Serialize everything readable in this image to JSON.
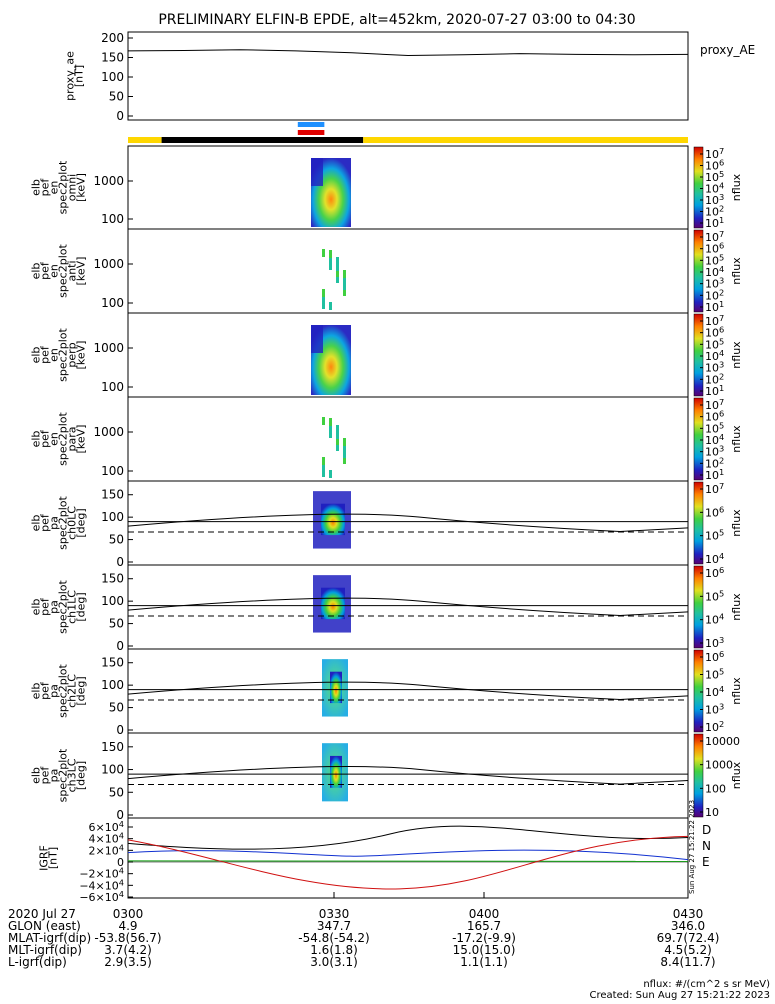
{
  "title": "PRELIMINARY ELFIN-B EPDE, alt=452km, 2020-07-27 03:00 to 04:30",
  "colors": {
    "black": "#000000",
    "bar_yellow": "#FFD700",
    "bar_blue": "#1E90FF",
    "bar_red": "#E00000",
    "series_black": "#000000",
    "series_blue": "#1030D0",
    "series_green": "#10A010",
    "series_red": "#D01010"
  },
  "chart_data": [
    {
      "id": "proxy_ae",
      "type": "line",
      "ylabel": [
        "proxy_ae",
        "[nT]"
      ],
      "right_label": "proxy_AE",
      "yticks": [
        "200",
        "150",
        "100",
        "50",
        "0"
      ],
      "ylim": [
        0,
        210
      ],
      "x": [
        0,
        0.1,
        0.2,
        0.3,
        0.4,
        0.5,
        0.6,
        0.7,
        0.8,
        0.9,
        1.0
      ],
      "values": [
        167,
        168,
        170,
        167,
        162,
        155,
        157,
        160,
        158,
        157,
        158
      ]
    },
    {
      "id": "orbit_bars",
      "type": "other",
      "segments": [
        {
          "color": "yellow",
          "from": 0.0,
          "to": 0.06
        },
        {
          "color": "black",
          "from": 0.06,
          "to": 0.42
        },
        {
          "color": "yellow",
          "from": 0.42,
          "to": 1.0
        }
      ],
      "markers": [
        {
          "color": "blue",
          "from": 0.33,
          "to": 0.4
        },
        {
          "color": "red",
          "from": 0.33,
          "to": 0.4
        }
      ]
    },
    {
      "id": "spec_omni",
      "type": "heatmap",
      "ylabel": [
        "elb",
        "pef",
        "en",
        "spec2plot",
        "omni",
        "[keV]"
      ],
      "yticks": [
        "1000",
        "100"
      ],
      "colorbar": {
        "ticks": [
          "10^7",
          "10^6",
          "10^5",
          "10^4",
          "10^3",
          "10^2",
          "10^1"
        ],
        "label": "nflux"
      }
    },
    {
      "id": "spec_anti",
      "type": "heatmap",
      "ylabel": [
        "elb",
        "pef",
        "en",
        "spec2plot",
        "anti",
        "[keV]"
      ],
      "yticks": [
        "1000",
        "100"
      ],
      "colorbar": {
        "ticks": [
          "10^7",
          "10^6",
          "10^5",
          "10^4",
          "10^3",
          "10^2",
          "10^1"
        ],
        "label": "nflux"
      }
    },
    {
      "id": "spec_perp",
      "type": "heatmap",
      "ylabel": [
        "elb",
        "pef",
        "en",
        "spec2plot",
        "perp",
        "[keV]"
      ],
      "yticks": [
        "1000",
        "100"
      ],
      "colorbar": {
        "ticks": [
          "10^7",
          "10^6",
          "10^5",
          "10^4",
          "10^3",
          "10^2",
          "10^1"
        ],
        "label": "nflux"
      }
    },
    {
      "id": "spec_para",
      "type": "heatmap",
      "ylabel": [
        "elb",
        "pef",
        "en",
        "spec2plot",
        "para",
        "[keV]"
      ],
      "yticks": [
        "1000",
        "100"
      ],
      "colorbar": {
        "ticks": [
          "10^7",
          "10^6",
          "10^5",
          "10^4",
          "10^3",
          "10^2",
          "10^1"
        ],
        "label": "nflux"
      }
    },
    {
      "id": "pa_ch0",
      "type": "heatmap",
      "ylabel": [
        "elb",
        "pef",
        "pa",
        "spec2plot",
        "ch0LC",
        "[deg]"
      ],
      "yticks": [
        "150",
        "100",
        "50",
        "0"
      ],
      "colorbar": {
        "ticks": [
          "10^7",
          "10^6",
          "10^5",
          "10^4"
        ],
        "label": "nflux"
      }
    },
    {
      "id": "pa_ch1",
      "type": "heatmap",
      "ylabel": [
        "elb",
        "pef",
        "pa",
        "spec2plot",
        "ch1LC",
        "[deg]"
      ],
      "yticks": [
        "150",
        "100",
        "50",
        "0"
      ],
      "colorbar": {
        "ticks": [
          "10^6",
          "10^5",
          "10^4",
          "10^3"
        ],
        "label": "nflux"
      }
    },
    {
      "id": "pa_ch2",
      "type": "heatmap",
      "ylabel": [
        "elb",
        "pef",
        "pa",
        "spec2plot",
        "ch2LC",
        "[deg]"
      ],
      "yticks": [
        "150",
        "100",
        "50",
        "0"
      ],
      "colorbar": {
        "ticks": [
          "10^6",
          "10^5",
          "10^4",
          "10^3",
          "10^2"
        ],
        "label": "nflux"
      }
    },
    {
      "id": "pa_ch3",
      "type": "heatmap",
      "ylabel": [
        "elb",
        "pef",
        "pa",
        "spec2plot",
        "ch3LC",
        "[deg]"
      ],
      "yticks": [
        "150",
        "100",
        "50",
        "0"
      ],
      "colorbar": {
        "ticks": [
          "10000",
          "1000",
          "100",
          "10"
        ],
        "label": "nflux"
      }
    },
    {
      "id": "igrf",
      "type": "line",
      "ylabel": [
        "IGRF",
        "[nT]"
      ],
      "yticks": [
        "6×10^4",
        "4×10^4",
        "2×10^4",
        "0",
        "−2×10^4",
        "−4×10^4",
        "−6×10^4"
      ],
      "ylim": [
        -60000,
        60000
      ],
      "legend": [
        "D",
        "N",
        "E"
      ],
      "side_note": "Sun Aug 27 15:21:22 2023"
    }
  ],
  "footer": {
    "rows": [
      {
        "label": "2020 Jul 27",
        "values": [
          "0300",
          "0330",
          "0400",
          "0430"
        ]
      },
      {
        "label": "GLON (east)",
        "values": [
          "4.9",
          "347.7",
          "165.7",
          "346.0"
        ]
      },
      {
        "label": "MLAT-igrf(dip)",
        "values": [
          "-53.8(56.7)",
          "-54.8(-54.2)",
          "-17.2(-9.9)",
          "69.7(72.4)"
        ]
      },
      {
        "label": "MLT-igrf(dip)",
        "values": [
          "3.7(4.2)",
          "1.6(1.8)",
          "15.0(15.0)",
          "4.5(5.2)"
        ]
      },
      {
        "label": "L-igrf(dip)",
        "values": [
          "2.9(3.5)",
          "3.0(3.1)",
          "1.1(1.1)",
          "8.4(11.7)"
        ]
      }
    ],
    "units_note": "nflux: #/(cm^2 s sr MeV)",
    "created": "Created: Sun Aug 27 15:21:22 2023"
  }
}
